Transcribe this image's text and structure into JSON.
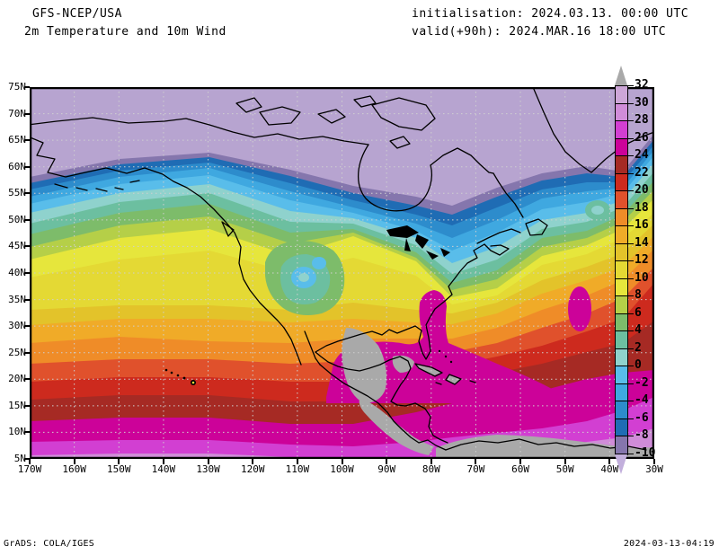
{
  "header": {
    "model": "GFS-NCEP/USA",
    "field": "2m Temperature and 10m Wind",
    "init_label": "initialisation: 2024.03.13. 00:00 UTC",
    "valid_label": "valid(+90h): 2024.MAR.16 18:00 UTC"
  },
  "footer": {
    "left": "GrADS: COLA/IGES",
    "right": "2024-03-13-04:19"
  },
  "axes": {
    "lat_ticks": [
      "75N",
      "70N",
      "65N",
      "60N",
      "55N",
      "50N",
      "45N",
      "40N",
      "35N",
      "30N",
      "25N",
      "20N",
      "15N",
      "10N",
      "5N"
    ],
    "lon_ticks": [
      "170W",
      "160W",
      "150W",
      "140W",
      "130W",
      "120W",
      "110W",
      "100W",
      "90W",
      "80W",
      "70W",
      "60W",
      "50W",
      "40W",
      "30W"
    ]
  },
  "colorbar": {
    "boundary_labels": [
      "32",
      "30",
      "28",
      "26",
      "24",
      "22",
      "20",
      "18",
      "16",
      "14",
      "12",
      "10",
      "8",
      "6",
      "4",
      "2",
      "0",
      "-2",
      "-4",
      "-6",
      "-8",
      "-10"
    ],
    "segment_colors": [
      "#cda6d7",
      "#d08cd8",
      "#d23fd2",
      "#cc0299",
      "#a62a24",
      "#cd2a1e",
      "#e0512c",
      "#ef8c28",
      "#f0ab28",
      "#e3c32a",
      "#e4d934",
      "#e6e63c",
      "#b5cf48",
      "#7dbc6a",
      "#6cbfa0",
      "#8fd2cd",
      "#59bdea",
      "#3fa8e0",
      "#2d8ccc",
      "#1f6cb4",
      "#8576ad"
    ],
    "above_color": "#a9a9a9",
    "below_color": "#c2afdc"
  },
  "palette": {
    "arctic": "#b7a4d0",
    "slate": "#8576ad",
    "dblue": "#1f6cb4",
    "blue": "#2d8ccc",
    "sky": "#3fa8e0",
    "lblue": "#59bdea",
    "pteal": "#8fd2cd",
    "teal": "#6cbfa0",
    "green": "#7dbc6a",
    "ygreen": "#b5cf48",
    "yellow1": "#e6e63c",
    "yellow2": "#e4d934",
    "gold": "#e3c32a",
    "amber": "#f0ab28",
    "orange": "#ef8c28",
    "orred": "#e0512c",
    "red": "#cd2a1e",
    "brick": "#a62a24",
    "magenta": "#cc0299",
    "orchid": "#d23fd2",
    "plum": "#d08cd8",
    "hot_gray": "#a9a9a9",
    "gridline": "#cfcfcf",
    "coast": "#000000"
  }
}
